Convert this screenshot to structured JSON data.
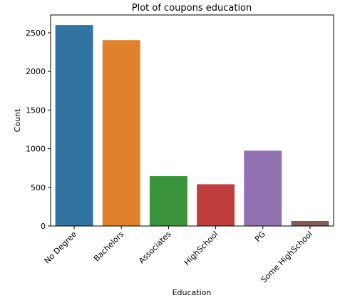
{
  "chart_data": {
    "type": "bar",
    "title": "Plot of coupons education",
    "xlabel": "Education",
    "ylabel": "Count",
    "categories": [
      "No Degree",
      "Bachelors",
      "Associates",
      "HighSchool",
      "PG",
      "Some HighSchool"
    ],
    "values": [
      2600,
      2405,
      645,
      540,
      975,
      65
    ],
    "colors": [
      "#3274a1",
      "#e1812c",
      "#3a923a",
      "#c03d3e",
      "#9372b2",
      "#845b53"
    ],
    "ylim": [
      0,
      2730
    ],
    "yticks": [
      0,
      500,
      1000,
      1500,
      2000,
      2500
    ],
    "grid": false,
    "legend": "none"
  }
}
